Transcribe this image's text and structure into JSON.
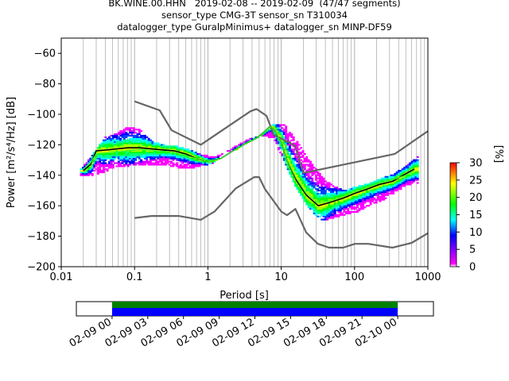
{
  "header": {
    "line1": "BK.WINE.00.HHN   2019-02-08 -- 2019-02-09  (47/47 segments)",
    "line2": "sensor_type CMG-3T sensor_sn T310034",
    "line3": "datalogger_type GuralpMinimus+ datalogger_sn MINP-DF59"
  },
  "chart_data": [
    {
      "type": "heatmap",
      "title": "BK.WINE.00.HHN   2019-02-08 -- 2019-02-09  (47/47 segments)",
      "xlabel": "Period [s]",
      "ylabel": "Power [m²/s⁴/Hz] [dB]",
      "x_scale": "log",
      "xlim": [
        0.01,
        1000
      ],
      "ylim": [
        -200,
        -50
      ],
      "x_ticks": [
        "0.01",
        "0.1",
        "1",
        "10",
        "100",
        "1000"
      ],
      "y_ticks": [
        "−60",
        "−80",
        "−100",
        "−120",
        "−140",
        "−160",
        "−180",
        "−200"
      ],
      "grid": "vertical, log minor",
      "colorbar": {
        "label": "[%]",
        "range": [
          0,
          30
        ],
        "ticks": [
          "0",
          "5",
          "10",
          "15",
          "20",
          "25",
          "30"
        ],
        "colormap": [
          "#ffffff",
          "#ff00ff",
          "#0000ff",
          "#00ffff",
          "#00ff00",
          "#ffff00",
          "#ff0000"
        ]
      },
      "series": [
        {
          "name": "noise model high",
          "color": "#666666",
          "x": [
            0.1,
            0.22,
            0.32,
            0.8,
            3.8,
            4.6,
            6.3,
            7.9,
            15.4,
            20,
            354.8,
            1000
          ],
          "y": [
            -91.5,
            -97.4,
            -110.5,
            -120,
            -98,
            -96.5,
            -101,
            -113.5,
            -120.5,
            -138.5,
            -126,
            -111
          ]
        },
        {
          "name": "noise model low",
          "color": "#666666",
          "x": [
            0.1,
            0.17,
            0.4,
            0.8,
            1.24,
            2.4,
            4.3,
            5,
            6,
            10,
            12,
            15.6,
            21.9,
            31.6,
            45,
            70,
            101,
            154,
            328,
            600,
            1000
          ],
          "y": [
            -168,
            -166.7,
            -166.7,
            -169.2,
            -163.7,
            -148.6,
            -141.2,
            -141.2,
            -149,
            -163.8,
            -166.2,
            -162.1,
            -177.5,
            -185,
            -187.5,
            -187.5,
            -185,
            -185,
            -187.5,
            -184.4,
            -178
          ]
        },
        {
          "name": "mode",
          "color": "#000000",
          "x": [
            0.02,
            0.025,
            0.03,
            0.05,
            0.08,
            0.12,
            0.2,
            0.35,
            0.5,
            0.7,
            1.0,
            1.5,
            2.2,
            3.3,
            4.5,
            6.0,
            7.0,
            8.0,
            10.0,
            12.0,
            16.0,
            22.0,
            32.0,
            45.0,
            70.0,
            100.0,
            150.0,
            220.0,
            330.0,
            500.0,
            650.0
          ],
          "y": [
            -137,
            -133,
            -124,
            -123,
            -122,
            -122,
            -123,
            -124,
            -126,
            -129,
            -131,
            -129,
            -124,
            -119,
            -116,
            -111,
            -108,
            -110,
            -118,
            -130,
            -143,
            -153,
            -160,
            -158,
            -155,
            -152,
            -149,
            -146,
            -144,
            -139,
            -136
          ]
        },
        {
          "name": "mean",
          "color": "#33ff33",
          "x": [
            0.02,
            0.025,
            0.03,
            0.05,
            0.08,
            0.12,
            0.2,
            0.35,
            0.5,
            0.7,
            1.0,
            1.5,
            2.2,
            3.3,
            4.5,
            6.0,
            7.0,
            8.0,
            10.0,
            12.0,
            16.0,
            22.0,
            32.0,
            45.0,
            70.0,
            100.0,
            150.0,
            220.0,
            330.0,
            500.0,
            650.0
          ],
          "y": [
            -136,
            -132,
            -126,
            -125,
            -124,
            -123,
            -124,
            -125,
            -127,
            -129,
            -131,
            -129,
            -124,
            -119,
            -116,
            -111,
            -108,
            -110,
            -118,
            -130,
            -142,
            -152,
            -158,
            -157,
            -154,
            -151,
            -148,
            -145,
            -143,
            -140,
            -137
          ]
        }
      ],
      "data_range": {
        "x": [
          0.018,
          700
        ],
        "y_top": [
          -136,
          -126,
          -115,
          -112,
          -108,
          -110,
          -118,
          -120,
          -121,
          -123,
          -126,
          -128,
          -125,
          -120,
          -116,
          -114,
          -106,
          -107,
          -118,
          -130,
          -140,
          -147,
          -150,
          -147,
          -145,
          -142,
          -139,
          -134,
          -127
        ],
        "y_bottom": [
          -140,
          -140,
          -138,
          -134,
          -134,
          -133,
          -134,
          -133,
          -135,
          -136,
          -134,
          -132,
          -125,
          -123,
          -118,
          -114,
          -116,
          -133,
          -150,
          -162,
          -170,
          -168,
          -166,
          -164,
          -160,
          -157,
          -152,
          -147,
          -145
        ]
      }
    },
    {
      "type": "bar",
      "title": "",
      "xlabel": "",
      "ylabel": "",
      "x_ticks": [
        "02-09 00",
        "02-09 03",
        "02-09 06",
        "02-09 09",
        "02-09 12",
        "02-09 15",
        "02-09 18",
        "02-09 21",
        "02-10 00"
      ],
      "xlim": [
        "2019-02-08 21:00",
        "2019-02-10 03:00"
      ],
      "series": [
        {
          "name": "data available",
          "color": "#008000",
          "start": "2019-02-09 00:00",
          "end": "2019-02-10 00:00"
        },
        {
          "name": "used in PPSD",
          "color": "#0000ff",
          "start": "2019-02-09 00:00",
          "end": "2019-02-10 00:00"
        }
      ]
    }
  ]
}
